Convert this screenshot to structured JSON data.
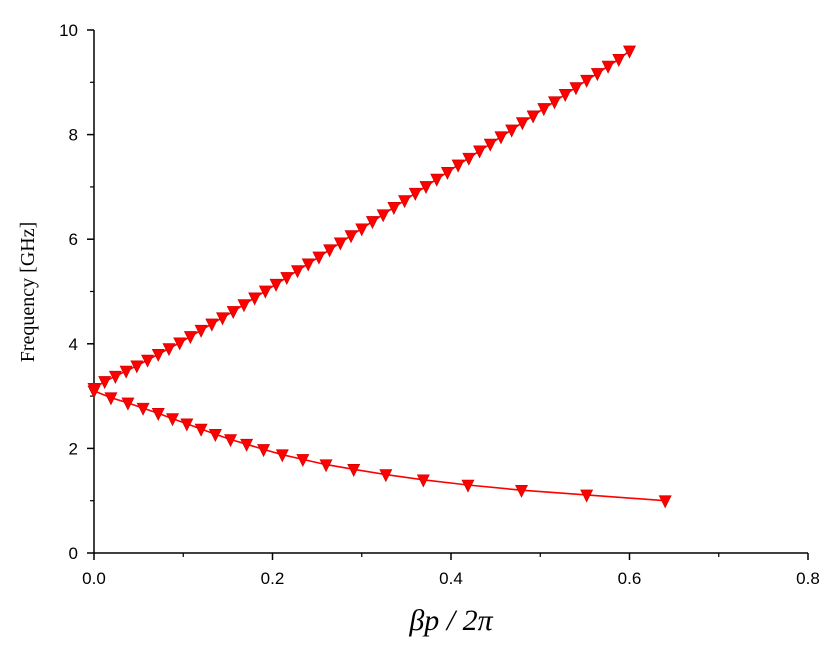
{
  "chart_data": {
    "type": "line",
    "title": "",
    "xlabel": "βp / 2π",
    "ylabel": "Frequency [GHz]",
    "xlim": [
      0,
      0.8
    ],
    "ylim": [
      0,
      10
    ],
    "x_ticks": [
      "0.0",
      "0.2",
      "0.4",
      "0.6",
      "0.8"
    ],
    "y_ticks": [
      "0",
      "2",
      "4",
      "6",
      "8",
      "10"
    ],
    "grid": false,
    "legend": "none",
    "marker": "triangle-down",
    "color": "#ff0000",
    "series": [
      {
        "x": [
          0.0,
          0.012,
          0.024,
          0.036,
          0.048,
          0.06,
          0.072,
          0.084,
          0.096,
          0.108,
          0.12,
          0.132,
          0.144,
          0.156,
          0.168,
          0.18,
          0.192,
          0.204,
          0.216,
          0.228,
          0.24,
          0.252,
          0.264,
          0.276,
          0.288,
          0.3,
          0.312,
          0.324,
          0.336,
          0.348,
          0.36,
          0.372,
          0.384,
          0.396,
          0.408,
          0.42,
          0.432,
          0.444,
          0.456,
          0.468,
          0.48,
          0.492,
          0.504,
          0.516,
          0.528,
          0.54,
          0.552,
          0.564,
          0.576,
          0.588,
          0.6
        ],
        "y": [
          3.15,
          3.28,
          3.38,
          3.48,
          3.58,
          3.69,
          3.8,
          3.91,
          4.02,
          4.14,
          4.26,
          4.38,
          4.5,
          4.62,
          4.75,
          4.88,
          5.01,
          5.14,
          5.27,
          5.4,
          5.53,
          5.66,
          5.8,
          5.93,
          6.07,
          6.2,
          6.34,
          6.47,
          6.61,
          6.74,
          6.88,
          7.01,
          7.15,
          7.28,
          7.42,
          7.55,
          7.69,
          7.82,
          7.96,
          8.09,
          8.23,
          8.36,
          8.5,
          8.63,
          8.77,
          8.9,
          9.04,
          9.17,
          9.31,
          9.44,
          9.6
        ]
      },
      {
        "x": [
          0.0,
          0.019,
          0.038,
          0.055,
          0.072,
          0.088,
          0.104,
          0.12,
          0.136,
          0.153,
          0.171,
          0.19,
          0.211,
          0.234,
          0.26,
          0.291,
          0.327,
          0.369,
          0.419,
          0.479,
          0.552,
          0.64
        ],
        "y": [
          3.1,
          2.97,
          2.87,
          2.77,
          2.67,
          2.57,
          2.47,
          2.37,
          2.27,
          2.17,
          2.08,
          1.98,
          1.88,
          1.79,
          1.69,
          1.6,
          1.5,
          1.4,
          1.3,
          1.2,
          1.11,
          1.0
        ]
      }
    ]
  }
}
